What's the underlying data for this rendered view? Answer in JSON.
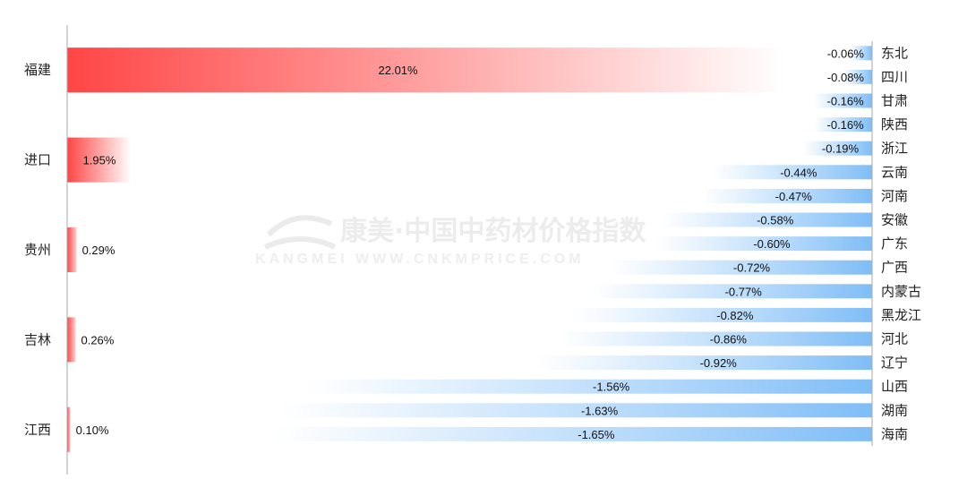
{
  "watermark": {
    "main": "康美·中国中药材价格指数",
    "sub": "KANGMEI WWW.CNKMPRICE.COM"
  },
  "colors": {
    "positive": "#ff4a4a",
    "negative": "#8cc4f7",
    "axis": "#aaaaaa"
  },
  "chart_data": [
    {
      "type": "bar",
      "orientation": "horizontal",
      "categories": [
        "福建",
        "进口",
        "贵州",
        "吉林",
        "江西"
      ],
      "values": [
        22.01,
        1.95,
        0.29,
        0.26,
        0.1
      ],
      "labels": [
        "22.01%",
        "1.95%",
        "0.29%",
        "0.26%",
        "0.10%"
      ],
      "axis_side": "left",
      "grid": false
    },
    {
      "type": "bar",
      "orientation": "horizontal",
      "categories": [
        "东北",
        "四川",
        "甘肃",
        "陕西",
        "浙江",
        "云南",
        "河南",
        "安徽",
        "广东",
        "广西",
        "内蒙古",
        "黑龙江",
        "河北",
        "辽宁",
        "山西",
        "湖南",
        "海南"
      ],
      "values": [
        -0.06,
        -0.08,
        -0.16,
        -0.16,
        -0.19,
        -0.44,
        -0.47,
        -0.58,
        -0.6,
        -0.72,
        -0.77,
        -0.82,
        -0.86,
        -0.92,
        -1.56,
        -1.63,
        -1.65
      ],
      "labels": [
        "-0.06%",
        "-0.08%",
        "-0.16%",
        "-0.16%",
        "-0.19%",
        "-0.44%",
        "-0.47%",
        "-0.58%",
        "-0.60%",
        "-0.72%",
        "-0.77%",
        "-0.82%",
        "-0.86%",
        "-0.92%",
        "-1.56%",
        "-1.63%",
        "-1.65%"
      ],
      "axis_side": "right",
      "grid": false
    }
  ]
}
